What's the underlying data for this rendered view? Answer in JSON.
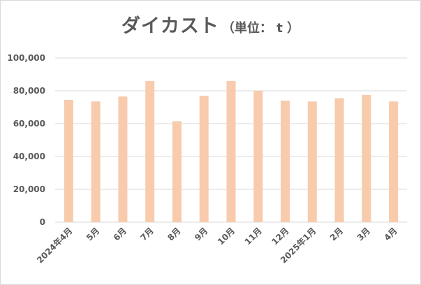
{
  "title": {
    "main": "ダイカスト",
    "unit": "（単位： t ）"
  },
  "chart_data": {
    "type": "bar",
    "title": "ダイカスト（単位： t ）",
    "xlabel": "",
    "ylabel": "",
    "categories": [
      "2024年4月",
      "5月",
      "6月",
      "7月",
      "8月",
      "9月",
      "10月",
      "11月",
      "12月",
      "2025年1月",
      "2月",
      "3月",
      "4月"
    ],
    "values": [
      74500,
      73500,
      76500,
      86000,
      61500,
      77000,
      86000,
      80000,
      74000,
      73500,
      75500,
      77500,
      73500
    ],
    "ylim": [
      0,
      100000
    ],
    "yticks": [
      0,
      20000,
      40000,
      60000,
      80000,
      100000
    ],
    "ytick_labels": [
      "0",
      "20,000",
      "40,000",
      "60,000",
      "80,000",
      "100,000"
    ],
    "grid": true,
    "legend": "none",
    "bar_color": "#f8cbad",
    "grid_color": "#d9d9d9"
  }
}
